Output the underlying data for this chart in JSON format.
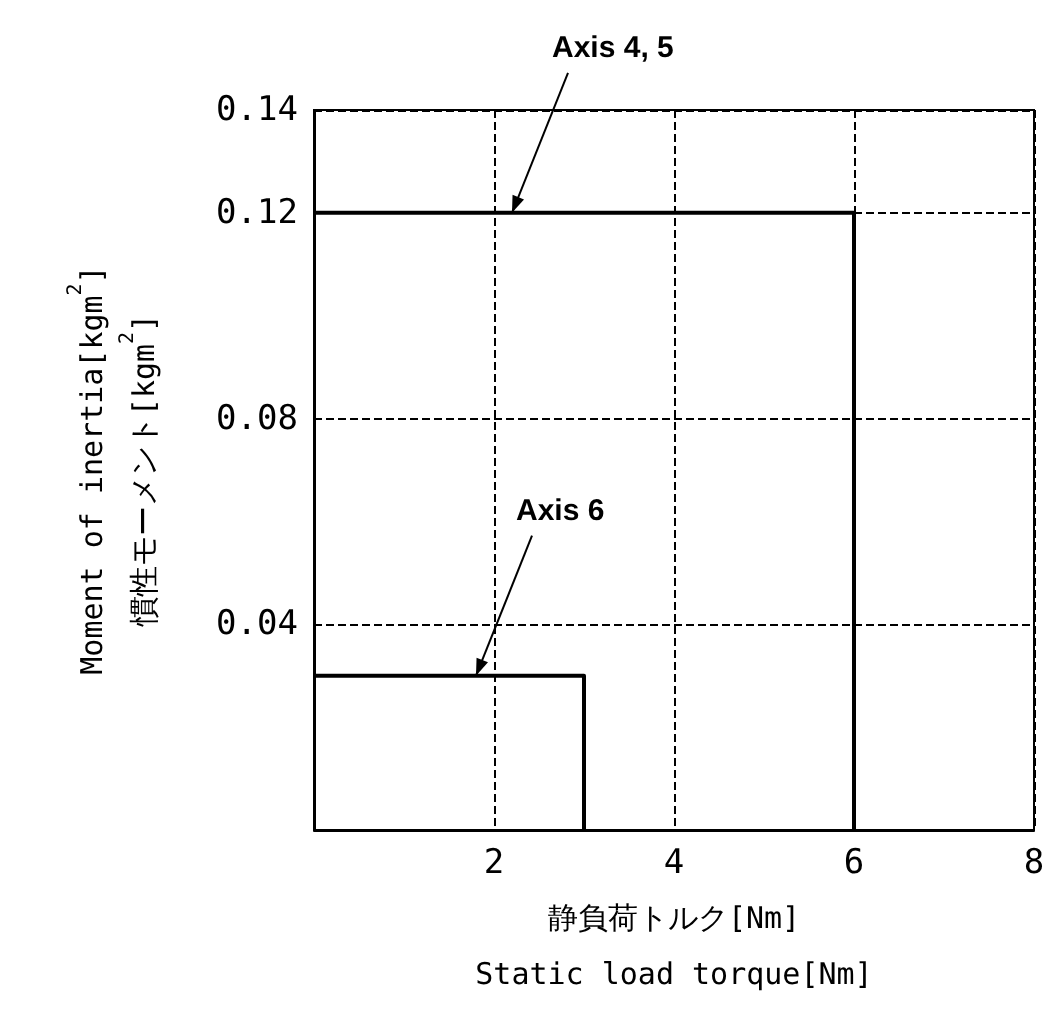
{
  "chart_data": {
    "type": "line",
    "xlabel": "静負荷トルク[Nm]\nStatic load torque[Nm]",
    "ylabel": "Moment of inertia[kgm$^{2}$]\n慣性モーメント[kgm$^{2}$]",
    "series": [
      {
        "color": "#000000",
        "x": [
          0,
          6,
          6
        ],
        "values": [
          0.12,
          0.12,
          0
        ]
      },
      {
        "color": "#000000",
        "x": [
          0,
          3,
          3
        ],
        "values": [
          0.03,
          0.03,
          0
        ]
      }
    ],
    "annotations": [
      {
        "text": "Axis 4, 5",
        "x": 2.2,
        "y": 0.12
      },
      {
        "text": "Axis 6",
        "x": 1.8,
        "y": 0.03
      }
    ],
    "xlim": [
      0,
      8
    ],
    "xticks": [
      2,
      4,
      6,
      8
    ],
    "ylim": [
      0,
      0.14
    ],
    "yticks": [
      0.04,
      0.08,
      0.12,
      0.14
    ],
    "grid": true,
    "marker": "none",
    "line_style": "solid"
  }
}
